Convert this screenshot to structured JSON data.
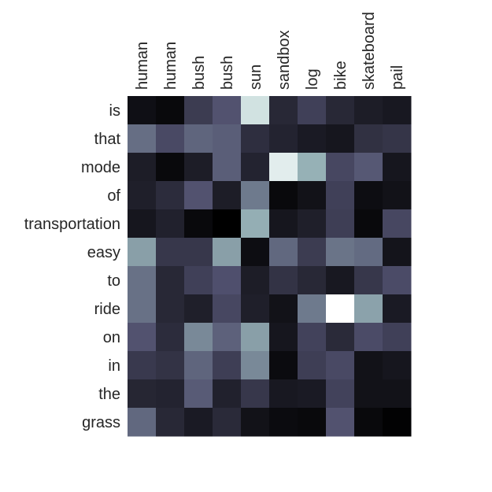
{
  "chart_data": {
    "type": "heatmap",
    "colormap": "bone",
    "x_labels": [
      "human",
      "human",
      "bush",
      "bush",
      "sun",
      "sandbox",
      "log",
      "bike",
      "skateboard",
      "pail"
    ],
    "y_labels": [
      "is",
      "that",
      "mode",
      "of",
      "transportation",
      "easy",
      "to",
      "ride",
      "on",
      "in",
      "the",
      "grass"
    ],
    "values": [
      [
        0.07,
        0.04,
        0.27,
        0.37,
        0.87,
        0.18,
        0.29,
        0.18,
        0.13,
        0.11
      ],
      [
        0.46,
        0.33,
        0.43,
        0.41,
        0.21,
        0.16,
        0.12,
        0.1,
        0.22,
        0.24
      ],
      [
        0.13,
        0.04,
        0.13,
        0.41,
        0.16,
        0.92,
        0.68,
        0.32,
        0.39,
        0.1
      ],
      [
        0.14,
        0.2,
        0.37,
        0.13,
        0.5,
        0.04,
        0.08,
        0.29,
        0.06,
        0.08
      ],
      [
        0.1,
        0.15,
        0.04,
        0.0,
        0.67,
        0.1,
        0.14,
        0.28,
        0.04,
        0.32
      ],
      [
        0.62,
        0.25,
        0.25,
        0.62,
        0.06,
        0.44,
        0.27,
        0.48,
        0.45,
        0.09
      ],
      [
        0.47,
        0.18,
        0.29,
        0.36,
        0.13,
        0.23,
        0.18,
        0.11,
        0.25,
        0.34
      ],
      [
        0.47,
        0.18,
        0.14,
        0.32,
        0.14,
        0.08,
        0.5,
        1.0,
        0.63,
        0.12
      ],
      [
        0.37,
        0.2,
        0.55,
        0.42,
        0.62,
        0.1,
        0.3,
        0.19,
        0.34,
        0.29
      ],
      [
        0.26,
        0.23,
        0.43,
        0.28,
        0.55,
        0.05,
        0.28,
        0.33,
        0.08,
        0.1
      ],
      [
        0.17,
        0.16,
        0.4,
        0.15,
        0.25,
        0.11,
        0.12,
        0.3,
        0.08,
        0.08
      ],
      [
        0.44,
        0.18,
        0.12,
        0.19,
        0.08,
        0.05,
        0.04,
        0.37,
        0.04,
        0.01
      ]
    ]
  }
}
